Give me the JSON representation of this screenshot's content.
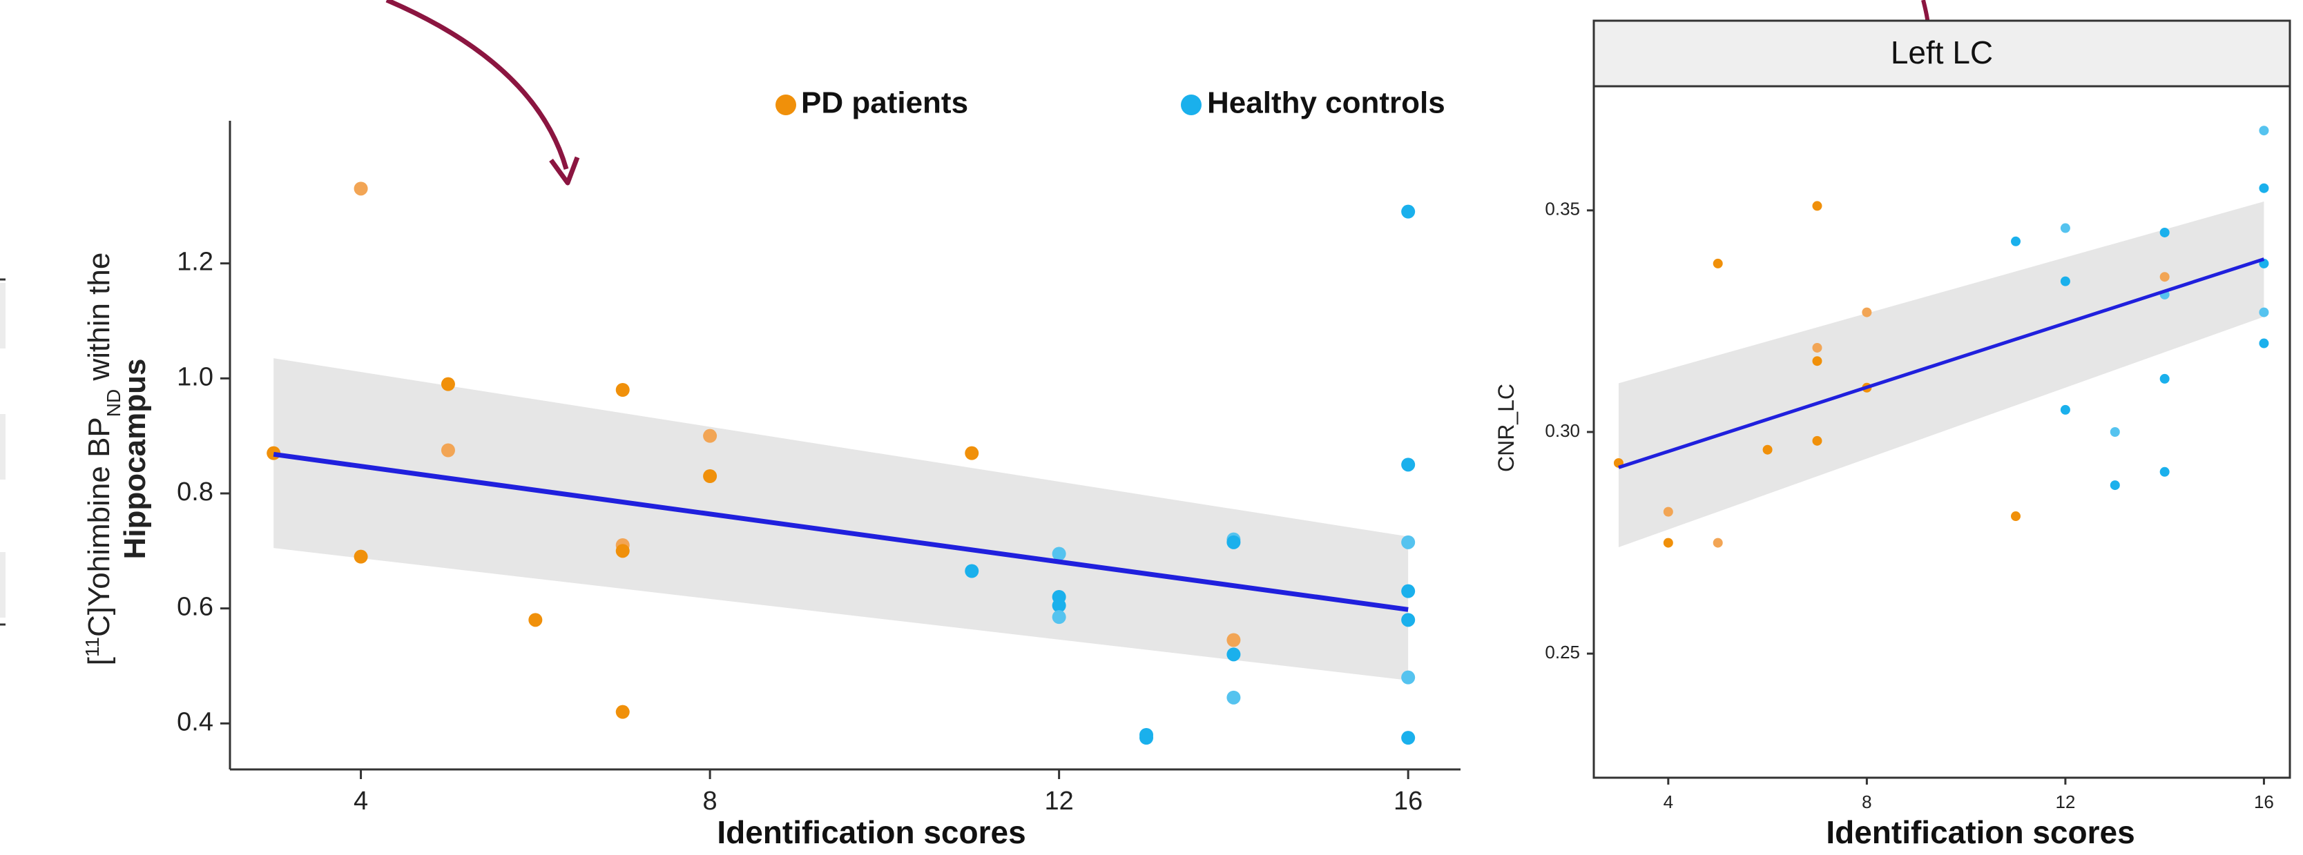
{
  "colors": {
    "pd": "#f0900a",
    "pd_light": "#f2a555",
    "hc": "#1ab0ec",
    "hc_light": "#55c3ef",
    "fit": "#2020dd",
    "band": "#e6e6e6",
    "arrow": "#8b1540"
  },
  "legend": {
    "pd_label": "PD patients",
    "hc_label": "Healthy controls"
  },
  "chart_data": [
    {
      "type": "scatter",
      "xlabel": "Identification scores",
      "ylabel": {
        "prefix": "[",
        "sup": "11",
        "mid": "C]Yohimbine BP",
        "sub": "ND",
        "suffix": " within the",
        "bold": "Hippocampus"
      },
      "xlim": [
        2.5,
        16.6
      ],
      "ylim": [
        0.32,
        1.4
      ],
      "xticks": [
        4,
        8,
        12,
        16
      ],
      "yticks": [
        0.4,
        0.6,
        0.8,
        1.0,
        1.2
      ],
      "ytick_labels": [
        "0.4",
        "0.6",
        "0.8",
        "1.0",
        "1.2"
      ],
      "grid": false,
      "legend_position": "top",
      "series": [
        {
          "name": "PD patients",
          "points": [
            [
              3,
              0.87
            ],
            [
              4,
              1.33
            ],
            [
              4,
              0.69
            ],
            [
              5,
              0.99
            ],
            [
              5,
              0.875
            ],
            [
              6,
              0.58
            ],
            [
              7,
              0.98
            ],
            [
              7,
              0.71
            ],
            [
              7,
              0.7
            ],
            [
              7,
              0.42
            ],
            [
              8,
              0.9
            ],
            [
              8,
              0.83
            ],
            [
              11,
              0.87
            ],
            [
              14,
              0.545
            ]
          ]
        },
        {
          "name": "Healthy controls",
          "points": [
            [
              11,
              0.665
            ],
            [
              12,
              0.695
            ],
            [
              12,
              0.62
            ],
            [
              12,
              0.605
            ],
            [
              12,
              0.585
            ],
            [
              13,
              0.38
            ],
            [
              13,
              0.375
            ],
            [
              14,
              0.72
            ],
            [
              14,
              0.715
            ],
            [
              14,
              0.52
            ],
            [
              14,
              0.445
            ],
            [
              16,
              1.29
            ],
            [
              16,
              0.85
            ],
            [
              16,
              0.715
            ],
            [
              16,
              0.63
            ],
            [
              16,
              0.58
            ],
            [
              16,
              0.48
            ],
            [
              16,
              0.375
            ]
          ]
        }
      ],
      "fit": {
        "x": [
          3,
          16
        ],
        "y": [
          0.868,
          0.598
        ]
      },
      "band": {
        "x": [
          3,
          16
        ],
        "lower": [
          0.705,
          0.475
        ],
        "upper": [
          1.035,
          0.725
        ]
      }
    },
    {
      "type": "scatter",
      "panel_title": "Left LC",
      "xlabel": "Identification scores",
      "ylabel": "CNR_LC",
      "xlim": [
        2.5,
        16.3
      ],
      "ylim": [
        0.222,
        0.378
      ],
      "xticks": [
        4,
        8,
        12,
        16
      ],
      "yticks": [
        0.25,
        0.3,
        0.35
      ],
      "ytick_labels": [
        "0.25",
        "0.30",
        "0.35"
      ],
      "grid": false,
      "series": [
        {
          "name": "PD patients",
          "points": [
            [
              3,
              0.293
            ],
            [
              4,
              0.282
            ],
            [
              4,
              0.275
            ],
            [
              5,
              0.338
            ],
            [
              5,
              0.275
            ],
            [
              6,
              0.296
            ],
            [
              7,
              0.351
            ],
            [
              7,
              0.319
            ],
            [
              7,
              0.316
            ],
            [
              7,
              0.298
            ],
            [
              8,
              0.327
            ],
            [
              8,
              0.31
            ],
            [
              11,
              0.281
            ],
            [
              14,
              0.335
            ]
          ]
        },
        {
          "name": "Healthy controls",
          "points": [
            [
              11,
              0.343
            ],
            [
              12,
              0.346
            ],
            [
              12,
              0.334
            ],
            [
              12,
              0.305
            ],
            [
              13,
              0.3
            ],
            [
              13,
              0.288
            ],
            [
              14,
              0.345
            ],
            [
              14,
              0.331
            ],
            [
              14,
              0.312
            ],
            [
              14,
              0.291
            ],
            [
              16,
              0.368
            ],
            [
              16,
              0.355
            ],
            [
              16,
              0.338
            ],
            [
              16,
              0.327
            ],
            [
              16,
              0.32
            ]
          ]
        }
      ],
      "fit": {
        "x": [
          3,
          16
        ],
        "y": [
          0.292,
          0.339
        ]
      },
      "band": {
        "x": [
          3,
          16
        ],
        "lower": [
          0.274,
          0.326
        ],
        "upper": [
          0.311,
          0.352
        ]
      }
    }
  ]
}
